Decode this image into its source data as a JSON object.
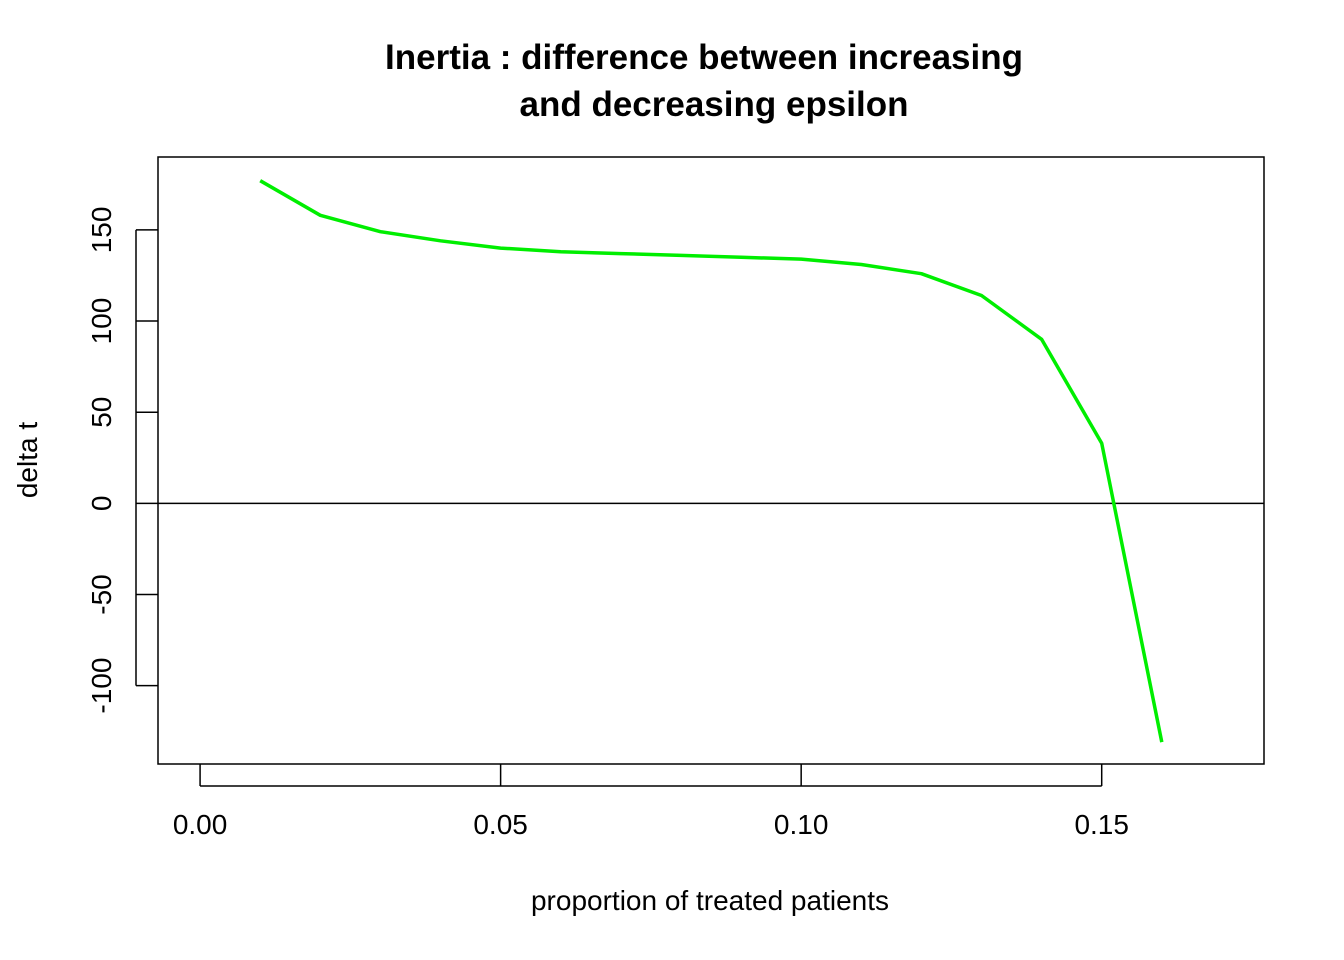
{
  "chart_data": {
    "type": "line",
    "title_lines": [
      "Inertia : difference between increasing",
      "and decreasing epsilon"
    ],
    "xlabel": "proportion of treated patients",
    "ylabel": "delta t",
    "xlim": [
      -0.007,
      0.177
    ],
    "ylim": [
      -143,
      190
    ],
    "x_ticks": [
      0.0,
      0.05,
      0.1,
      0.15
    ],
    "x_tick_labels": [
      "0.00",
      "0.05",
      "0.10",
      "0.15"
    ],
    "y_ticks": [
      -100,
      -50,
      0,
      50,
      100,
      150
    ],
    "y_tick_labels": [
      "-100",
      "-50",
      "0",
      "50",
      "100",
      "150"
    ],
    "reference_line_y": 0,
    "grid": false,
    "series": [
      {
        "color": "#00ee00",
        "x": [
          0.01,
          0.02,
          0.03,
          0.04,
          0.05,
          0.06,
          0.07,
          0.08,
          0.09,
          0.1,
          0.11,
          0.12,
          0.13,
          0.14,
          0.15,
          0.16
        ],
        "y": [
          177,
          158,
          149,
          144,
          140,
          138,
          137,
          136,
          135,
          134,
          131,
          126,
          114,
          90,
          33,
          -131
        ]
      }
    ]
  }
}
